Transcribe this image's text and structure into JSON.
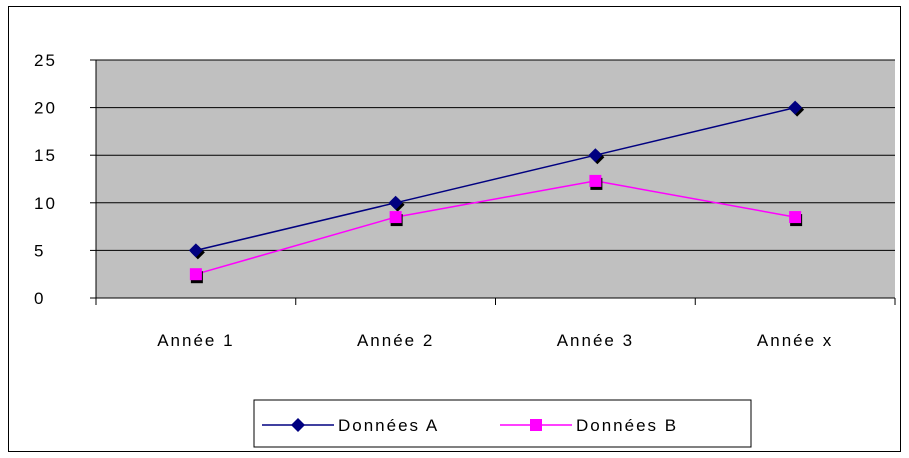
{
  "chart_data": {
    "type": "line",
    "categories": [
      "Année 1",
      "Année 2",
      "Année 3",
      "Année x"
    ],
    "series": [
      {
        "name": "Données A",
        "values": [
          5,
          10,
          15,
          20
        ],
        "color": "#000080",
        "marker": "diamond"
      },
      {
        "name": "Données B",
        "values": [
          2.5,
          8.5,
          12.3,
          8.5
        ],
        "color": "#ff00ff",
        "marker": "square"
      }
    ],
    "ylim": [
      0,
      25
    ],
    "yticks": [
      0,
      5,
      10,
      15,
      20,
      25
    ],
    "grid": true,
    "plot_background": "#c0c0c0",
    "legend_position": "bottom",
    "title": "",
    "xlabel": "",
    "ylabel": ""
  }
}
